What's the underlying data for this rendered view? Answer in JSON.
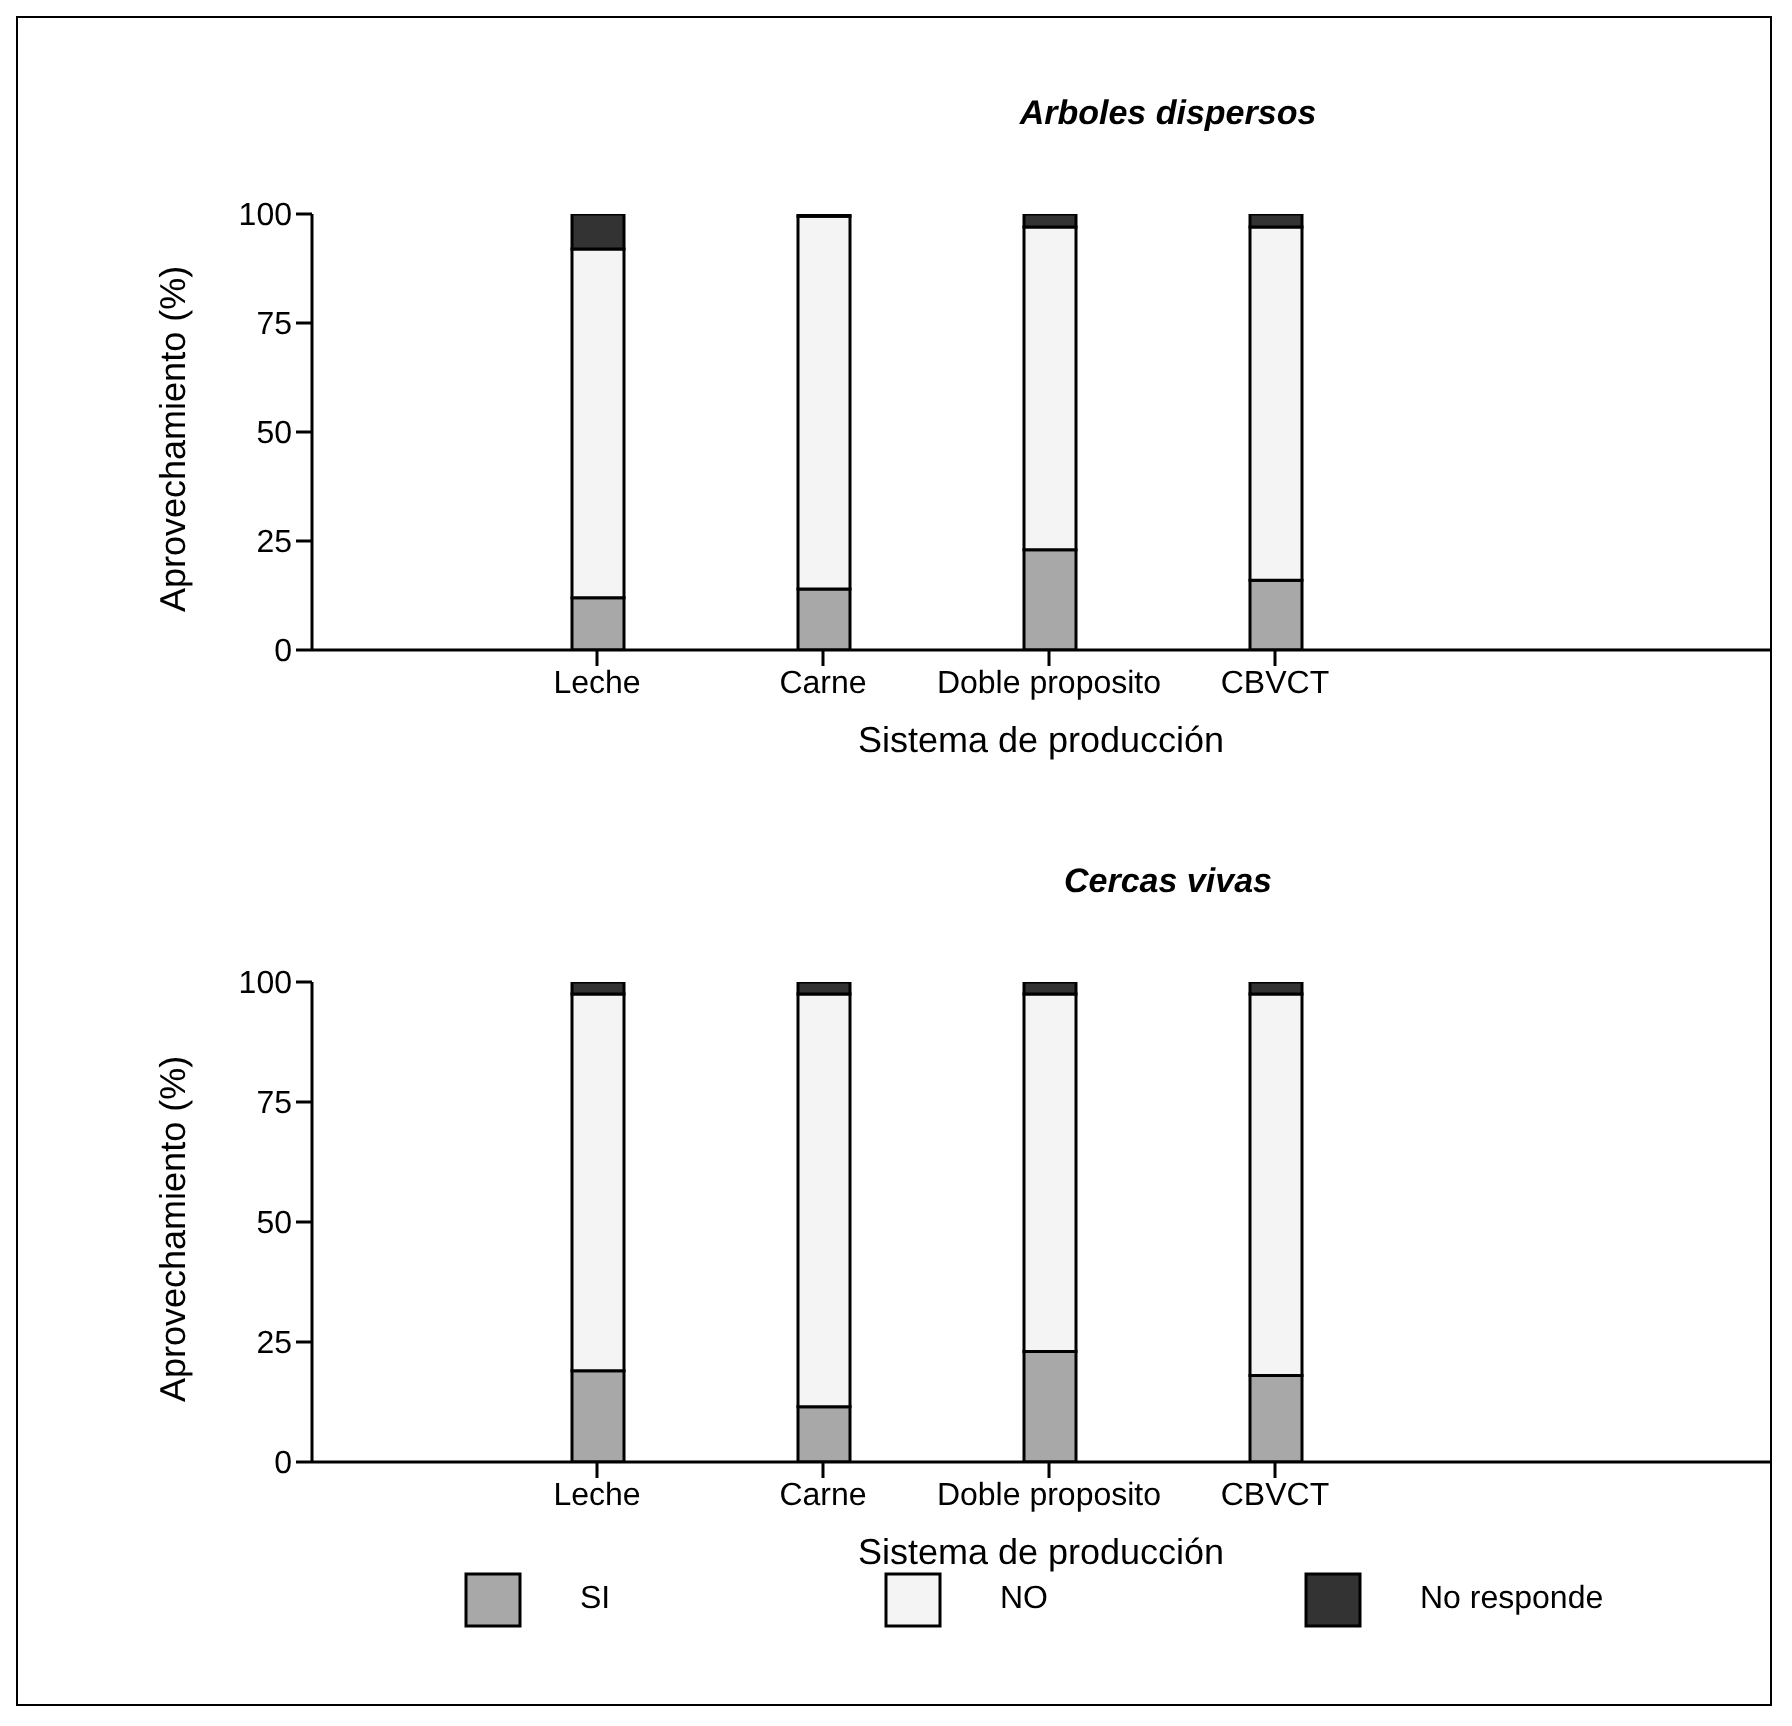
{
  "chart_data": [
    {
      "type": "bar",
      "title": "Arboles dispersos",
      "xlabel": "Sistema de producción",
      "ylabel": "Aprovechamiento (%)",
      "categories": [
        "Leche",
        "Carne",
        "Doble proposito",
        "CBVCT"
      ],
      "stacked": true,
      "ylim": [
        0,
        100
      ],
      "yticks": [
        0,
        25,
        50,
        75,
        100
      ],
      "series": [
        {
          "color": "#a8a8a8",
          "values": [
            12,
            14,
            23,
            16
          ]
        },
        {
          "color": "#f4f4f4",
          "values": [
            80,
            85.5,
            74,
            81
          ]
        },
        {
          "color": "#333333",
          "values": [
            8,
            0.5,
            3,
            3
          ]
        }
      ]
    },
    {
      "type": "bar",
      "title": "Cercas vivas",
      "xlabel": "Sistema de producción",
      "ylabel": "Aprovechamiento (%)",
      "categories": [
        "Leche",
        "Carne",
        "Doble proposito",
        "CBVCT"
      ],
      "stacked": true,
      "ylim": [
        0,
        100
      ],
      "yticks": [
        0,
        25,
        50,
        75,
        100
      ],
      "legend": "bottom",
      "series": [
        {
          "name": "SI",
          "color": "#a8a8a8",
          "values": [
            19,
            11.5,
            23,
            18
          ]
        },
        {
          "name": "NO",
          "color": "#f4f4f4",
          "values": [
            78.5,
            86,
            74.5,
            79.5
          ]
        },
        {
          "name": "No responde",
          "color": "#333333",
          "values": [
            2.5,
            2.5,
            2.5,
            2.5
          ]
        }
      ]
    }
  ]
}
